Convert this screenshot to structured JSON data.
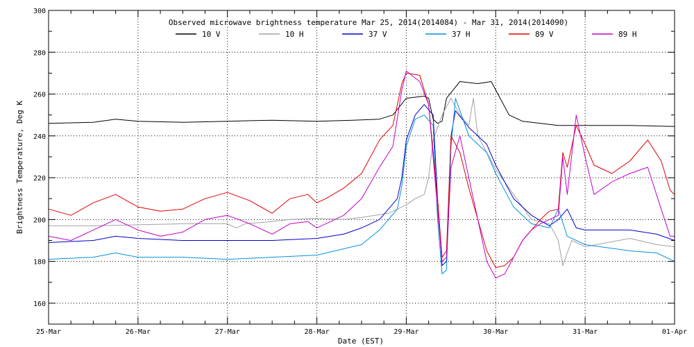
{
  "chart_data": {
    "type": "line",
    "title": "Observed microwave brightness temperature Mar 25, 2014(2014084) - Mar 31, 2014(2014090)",
    "xlabel": "Date (EST)",
    "ylabel": "Brightness Temperature, Deg K",
    "xlim": [
      0,
      7
    ],
    "ylim": [
      150,
      300
    ],
    "x_tick_values": [
      0,
      1,
      2,
      3,
      4,
      5,
      6,
      7
    ],
    "x_tick_labels": [
      "25-Mar",
      "26-Mar",
      "27-Mar",
      "28-Mar",
      "29-Mar",
      "30-Mar",
      "31-Mar",
      "01-Apr"
    ],
    "y_ticks": [
      160,
      180,
      200,
      220,
      240,
      260,
      280,
      300
    ],
    "grid": true,
    "legend": "top",
    "series": [
      {
        "name": "10 V",
        "color": "#000000",
        "points": [
          [
            0,
            246
          ],
          [
            0.5,
            246.5
          ],
          [
            0.75,
            248
          ],
          [
            1,
            247
          ],
          [
            1.5,
            246.5
          ],
          [
            2,
            247
          ],
          [
            2.5,
            247.5
          ],
          [
            3,
            247
          ],
          [
            3.4,
            247.5
          ],
          [
            3.7,
            248
          ],
          [
            3.85,
            250
          ],
          [
            4,
            258
          ],
          [
            4.2,
            259
          ],
          [
            4.25,
            258
          ],
          [
            4.3,
            248
          ],
          [
            4.35,
            246
          ],
          [
            4.4,
            247
          ],
          [
            4.45,
            258
          ],
          [
            4.6,
            266
          ],
          [
            4.8,
            265
          ],
          [
            4.95,
            266
          ],
          [
            5.05,
            258
          ],
          [
            5.15,
            250
          ],
          [
            5.3,
            247
          ],
          [
            5.5,
            246
          ],
          [
            5.7,
            245
          ],
          [
            6,
            245
          ],
          [
            6.5,
            245
          ],
          [
            7,
            244.5
          ]
        ]
      },
      {
        "name": "10 H",
        "color": "#a0a0a0",
        "points": [
          [
            0,
            197
          ],
          [
            0.5,
            197
          ],
          [
            1,
            197.5
          ],
          [
            1.5,
            198
          ],
          [
            2,
            198
          ],
          [
            2.1,
            196
          ],
          [
            2.2,
            198
          ],
          [
            2.5,
            199
          ],
          [
            2.7,
            200
          ],
          [
            3,
            200.5
          ],
          [
            3.3,
            200
          ],
          [
            3.5,
            201
          ],
          [
            3.8,
            203
          ],
          [
            4,
            207
          ],
          [
            4.1,
            210
          ],
          [
            4.2,
            212
          ],
          [
            4.25,
            220
          ],
          [
            4.3,
            238
          ],
          [
            4.4,
            250
          ],
          [
            4.5,
            258
          ],
          [
            4.6,
            250
          ],
          [
            4.7,
            245
          ],
          [
            4.75,
            258
          ],
          [
            4.8,
            240
          ],
          [
            4.9,
            232
          ],
          [
            5,
            224
          ],
          [
            5.2,
            212
          ],
          [
            5.4,
            200
          ],
          [
            5.6,
            198
          ],
          [
            5.7,
            190
          ],
          [
            5.75,
            178
          ],
          [
            5.85,
            190
          ],
          [
            6,
            187
          ],
          [
            6.5,
            191
          ],
          [
            6.8,
            188
          ],
          [
            7,
            187
          ]
        ]
      },
      {
        "name": "37 V",
        "color": "#0000c8",
        "points": [
          [
            0,
            189
          ],
          [
            0.5,
            190
          ],
          [
            0.75,
            192
          ],
          [
            1,
            191
          ],
          [
            1.5,
            190
          ],
          [
            2,
            190
          ],
          [
            2.5,
            190
          ],
          [
            3,
            191
          ],
          [
            3.3,
            193
          ],
          [
            3.5,
            196
          ],
          [
            3.7,
            200
          ],
          [
            3.8,
            205
          ],
          [
            3.9,
            210
          ],
          [
            3.95,
            220
          ],
          [
            4,
            238
          ],
          [
            4.1,
            250
          ],
          [
            4.2,
            255
          ],
          [
            4.3,
            250
          ],
          [
            4.35,
            210
          ],
          [
            4.4,
            178
          ],
          [
            4.45,
            180
          ],
          [
            4.5,
            240
          ],
          [
            4.55,
            252
          ],
          [
            4.7,
            244
          ],
          [
            4.9,
            236
          ],
          [
            5,
            226
          ],
          [
            5.2,
            210
          ],
          [
            5.4,
            202
          ],
          [
            5.6,
            197
          ],
          [
            5.7,
            200
          ],
          [
            5.8,
            205
          ],
          [
            5.9,
            196
          ],
          [
            6,
            195
          ],
          [
            6.5,
            195
          ],
          [
            6.8,
            193
          ],
          [
            7,
            190
          ]
        ]
      },
      {
        "name": "37 H",
        "color": "#0090e0",
        "points": [
          [
            0,
            181
          ],
          [
            0.5,
            182
          ],
          [
            0.75,
            184
          ],
          [
            1,
            182
          ],
          [
            1.5,
            182
          ],
          [
            2,
            181
          ],
          [
            2.5,
            182
          ],
          [
            3,
            183
          ],
          [
            3.3,
            186
          ],
          [
            3.5,
            188
          ],
          [
            3.7,
            195
          ],
          [
            3.8,
            200
          ],
          [
            3.9,
            205
          ],
          [
            3.95,
            216
          ],
          [
            4,
            235
          ],
          [
            4.1,
            248
          ],
          [
            4.2,
            250
          ],
          [
            4.3,
            245
          ],
          [
            4.35,
            200
          ],
          [
            4.4,
            174
          ],
          [
            4.45,
            176
          ],
          [
            4.5,
            235
          ],
          [
            4.55,
            258
          ],
          [
            4.7,
            240
          ],
          [
            4.9,
            232
          ],
          [
            5,
            222
          ],
          [
            5.2,
            206
          ],
          [
            5.4,
            198
          ],
          [
            5.6,
            196
          ],
          [
            5.7,
            205
          ],
          [
            5.8,
            192
          ],
          [
            6,
            188
          ],
          [
            6.5,
            185
          ],
          [
            6.8,
            184
          ],
          [
            7,
            180
          ]
        ]
      },
      {
        "name": "89 V",
        "color": "#e00000",
        "points": [
          [
            0,
            205
          ],
          [
            0.25,
            202
          ],
          [
            0.5,
            208
          ],
          [
            0.75,
            212
          ],
          [
            1,
            206
          ],
          [
            1.25,
            204
          ],
          [
            1.5,
            205
          ],
          [
            1.75,
            210
          ],
          [
            2,
            213
          ],
          [
            2.25,
            209
          ],
          [
            2.5,
            203
          ],
          [
            2.7,
            210
          ],
          [
            2.9,
            212
          ],
          [
            3,
            208
          ],
          [
            3.1,
            210
          ],
          [
            3.3,
            215
          ],
          [
            3.5,
            222
          ],
          [
            3.7,
            238
          ],
          [
            3.85,
            245
          ],
          [
            3.95,
            265
          ],
          [
            4,
            270
          ],
          [
            4.15,
            269
          ],
          [
            4.25,
            255
          ],
          [
            4.35,
            210
          ],
          [
            4.4,
            182
          ],
          [
            4.45,
            185
          ],
          [
            4.5,
            240
          ],
          [
            4.6,
            232
          ],
          [
            4.7,
            215
          ],
          [
            4.8,
            200
          ],
          [
            4.9,
            185
          ],
          [
            5,
            177
          ],
          [
            5.1,
            178
          ],
          [
            5.2,
            182
          ],
          [
            5.3,
            190
          ],
          [
            5.4,
            195
          ],
          [
            5.5,
            200
          ],
          [
            5.6,
            204
          ],
          [
            5.7,
            205
          ],
          [
            5.75,
            232
          ],
          [
            5.8,
            225
          ],
          [
            5.9,
            245
          ],
          [
            6,
            236
          ],
          [
            6.1,
            226
          ],
          [
            6.3,
            222
          ],
          [
            6.5,
            228
          ],
          [
            6.7,
            238
          ],
          [
            6.85,
            228
          ],
          [
            6.95,
            214
          ],
          [
            7,
            212
          ]
        ]
      },
      {
        "name": "89 H",
        "color": "#c000c8",
        "points": [
          [
            0,
            192
          ],
          [
            0.25,
            190
          ],
          [
            0.5,
            195
          ],
          [
            0.75,
            200
          ],
          [
            1,
            195
          ],
          [
            1.25,
            192
          ],
          [
            1.5,
            194
          ],
          [
            1.75,
            200
          ],
          [
            2,
            202
          ],
          [
            2.25,
            198
          ],
          [
            2.5,
            193
          ],
          [
            2.7,
            198
          ],
          [
            2.9,
            199
          ],
          [
            3,
            196
          ],
          [
            3.1,
            198
          ],
          [
            3.3,
            202
          ],
          [
            3.5,
            210
          ],
          [
            3.7,
            225
          ],
          [
            3.85,
            235
          ],
          [
            3.95,
            262
          ],
          [
            4,
            271
          ],
          [
            4.15,
            266
          ],
          [
            4.25,
            255
          ],
          [
            4.35,
            205
          ],
          [
            4.4,
            180
          ],
          [
            4.45,
            182
          ],
          [
            4.5,
            225
          ],
          [
            4.6,
            240
          ],
          [
            4.7,
            220
          ],
          [
            4.8,
            200
          ],
          [
            4.9,
            180
          ],
          [
            5,
            172
          ],
          [
            5.1,
            174
          ],
          [
            5.2,
            182
          ],
          [
            5.3,
            190
          ],
          [
            5.4,
            195
          ],
          [
            5.5,
            198
          ],
          [
            5.6,
            200
          ],
          [
            5.7,
            202
          ],
          [
            5.75,
            230
          ],
          [
            5.8,
            212
          ],
          [
            5.9,
            250
          ],
          [
            6,
            230
          ],
          [
            6.1,
            212
          ],
          [
            6.3,
            218
          ],
          [
            6.5,
            222
          ],
          [
            6.7,
            225
          ],
          [
            6.85,
            205
          ],
          [
            6.95,
            192
          ],
          [
            7,
            192
          ]
        ]
      }
    ]
  }
}
